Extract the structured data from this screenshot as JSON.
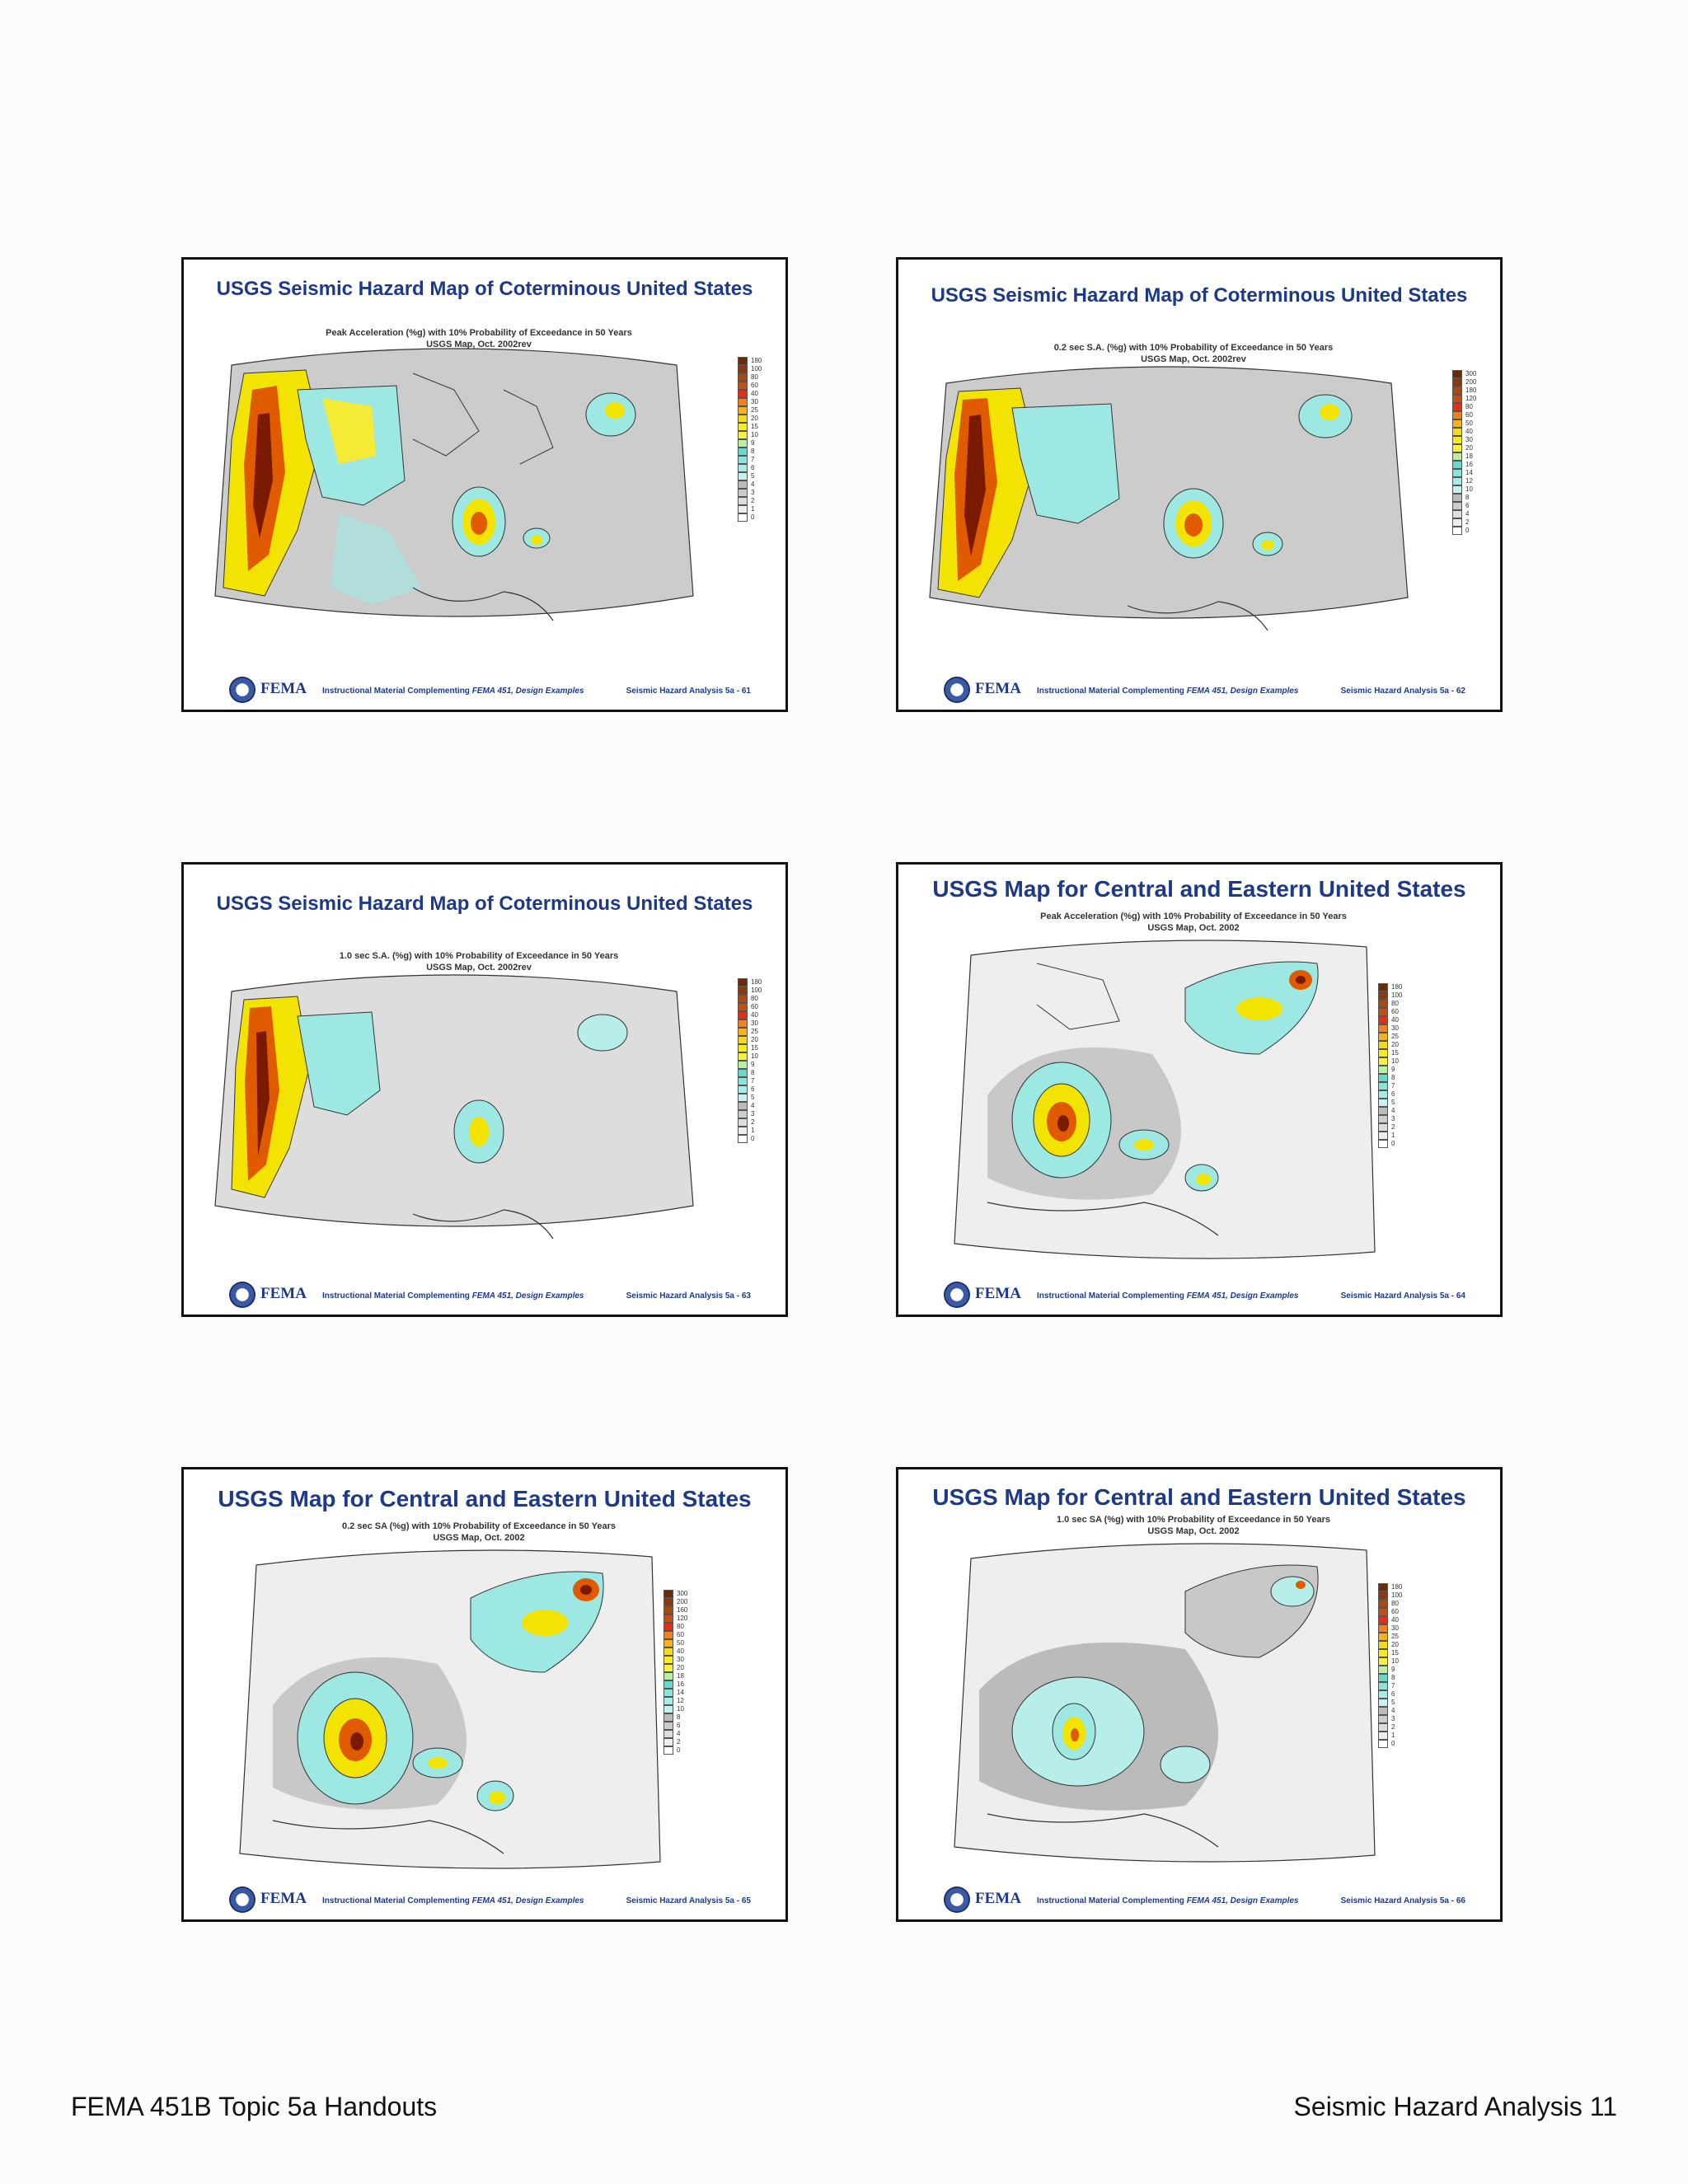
{
  "footer": {
    "left": "FEMA 451B Topic 5a Handouts",
    "right": "Seismic Hazard Analysis 11"
  },
  "slide_footer": {
    "logo_text": "FEMA",
    "material_prefix": "Instructional Material Complementing ",
    "material_italic": "FEMA 451, Design Examples"
  },
  "slides": [
    {
      "title": "USGS Seismic Hazard Map of Coterminous United States",
      "subtitle1": "Peak Acceleration (%g) with 10% Probability of Exceedance in 50 Years",
      "subtitle2": "USGS Map, Oct. 2002rev",
      "legend": [
        "180",
        "100",
        "80",
        "60",
        "40",
        "30",
        "25",
        "20",
        "15",
        "10",
        "9",
        "8",
        "7",
        "6",
        "5",
        "4",
        "3",
        "2",
        "1",
        "0"
      ],
      "page_label": "Seismic Hazard Analysis 5a - 61"
    },
    {
      "title": "USGS Seismic Hazard Map of Coterminous United States",
      "subtitle1": "0.2 sec S.A. (%g) with 10% Probability of Exceedance in 50 Years",
      "subtitle2": "USGS Map, Oct. 2002rev",
      "legend": [
        "300",
        "200",
        "180",
        "120",
        "80",
        "60",
        "50",
        "40",
        "30",
        "20",
        "18",
        "16",
        "14",
        "12",
        "10",
        "8",
        "6",
        "4",
        "2",
        "0"
      ],
      "page_label": "Seismic Hazard Analysis 5a - 62"
    },
    {
      "title": "USGS Seismic Hazard Map of Coterminous United States",
      "subtitle1": "1.0 sec S.A. (%g) with 10% Probability of Exceedance in 50 Years",
      "subtitle2": "USGS Map, Oct. 2002rev",
      "legend": [
        "180",
        "100",
        "80",
        "60",
        "40",
        "30",
        "25",
        "20",
        "15",
        "10",
        "9",
        "8",
        "7",
        "6",
        "5",
        "4",
        "3",
        "2",
        "1",
        "0"
      ],
      "page_label": "Seismic Hazard Analysis 5a - 63"
    },
    {
      "title": "USGS Map for Central and Eastern United States",
      "subtitle1": "Peak Acceleration (%g) with 10% Probability of Exceedance in 50 Years",
      "subtitle2": "USGS Map, Oct. 2002",
      "legend": [
        "180",
        "100",
        "80",
        "60",
        "40",
        "30",
        "25",
        "20",
        "15",
        "10",
        "9",
        "8",
        "7",
        "6",
        "5",
        "4",
        "3",
        "2",
        "1",
        "0"
      ],
      "page_label": "Seismic Hazard Analysis 5a - 64"
    },
    {
      "title": "USGS Map for Central and Eastern United States",
      "subtitle1": "0.2 sec SA (%g) with 10% Probability of Exceedance in 50 Years",
      "subtitle2": "USGS Map, Oct. 2002",
      "legend": [
        "300",
        "200",
        "160",
        "120",
        "80",
        "60",
        "50",
        "40",
        "30",
        "20",
        "18",
        "16",
        "14",
        "12",
        "10",
        "8",
        "6",
        "4",
        "2",
        "0"
      ],
      "page_label": "Seismic Hazard Analysis 5a - 65"
    },
    {
      "title": "USGS Map for Central and Eastern United States",
      "subtitle1": "1.0 sec SA (%g) with 10% Probability of Exceedance in 50 Years",
      "subtitle2": "USGS Map, Oct. 2002",
      "legend": [
        "180",
        "100",
        "80",
        "60",
        "40",
        "30",
        "25",
        "20",
        "15",
        "10",
        "9",
        "8",
        "7",
        "6",
        "5",
        "4",
        "3",
        "2",
        "1",
        "0"
      ],
      "page_label": "Seismic Hazard Analysis 5a - 66"
    }
  ]
}
